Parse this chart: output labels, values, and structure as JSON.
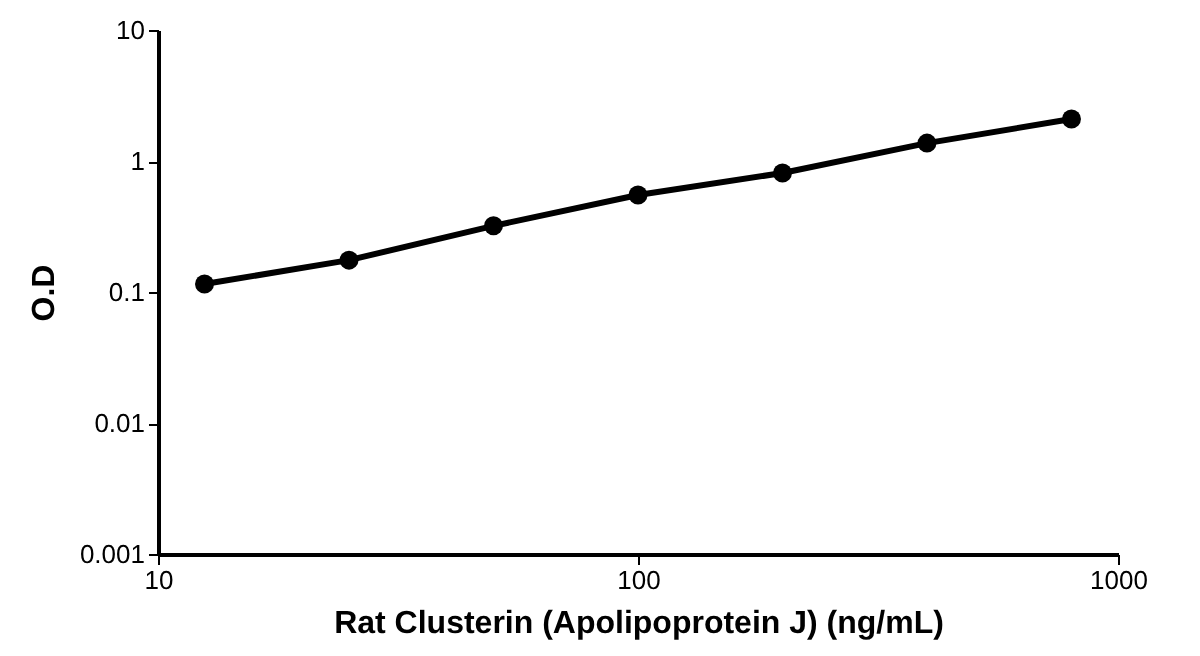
{
  "chart_data": {
    "type": "line",
    "xlabel": "Rat Clusterin (Apolipoprotein J) (ng/mL)",
    "ylabel": "O.D",
    "x": [
      12.5,
      25,
      50,
      100,
      200,
      400,
      800
    ],
    "series": [
      {
        "color": "#000000",
        "values": [
          0.115,
          0.175,
          0.32,
          0.55,
          0.81,
          1.37,
          2.09
        ]
      }
    ],
    "log": "xy",
    "xlim": [
      10,
      1000
    ],
    "xticks": [
      10,
      100,
      1000
    ],
    "ylim": [
      0.001,
      10
    ],
    "yticks": [
      0.001,
      0.01,
      0.1,
      1,
      10
    ],
    "marker": "circle",
    "line_style": "solid",
    "grid": false
  }
}
